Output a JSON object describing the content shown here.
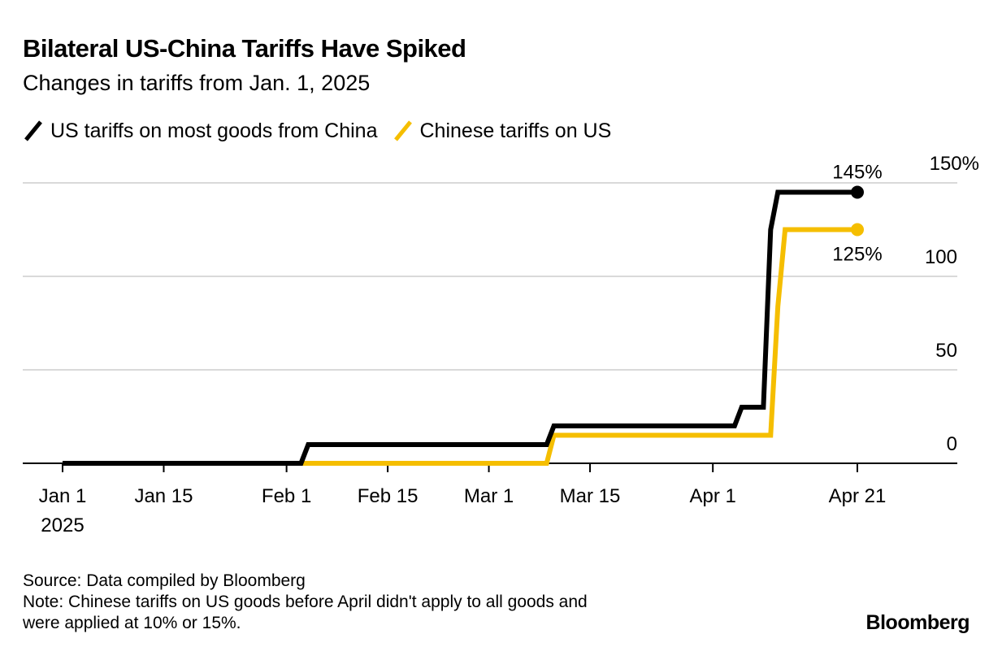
{
  "header": {
    "title": "Bilateral US-China Tariffs Have Spiked",
    "subtitle": "Changes in tariffs from Jan. 1, 2025"
  },
  "legend": [
    {
      "label": "US tariffs on most goods from China",
      "color": "#000000"
    },
    {
      "label": "Chinese tariffs on US",
      "color": "#F5BE00"
    }
  ],
  "footer": {
    "source": "Source: Data compiled by Bloomberg",
    "note_line1": "Note: Chinese tariffs on US goods before April didn't apply to all goods and",
    "note_line2": "were applied at 10% or 15%.",
    "brand": "Bloomberg"
  },
  "chart_data": {
    "type": "line",
    "title": "Bilateral US-China Tariffs Have Spiked",
    "subtitle": "Changes in tariffs from Jan. 1, 2025",
    "xlabel": "",
    "ylabel": "",
    "x_start": "2025-01-01",
    "x_end": "2025-04-21",
    "xlim_days": [
      0,
      123
    ],
    "ylim": [
      0,
      150
    ],
    "grid": true,
    "y_axis_side": "right",
    "legend_position": "top-left",
    "x_ticks": [
      {
        "day": 0,
        "label": "Jan 1",
        "sublabel": "2025"
      },
      {
        "day": 14,
        "label": "Jan 15"
      },
      {
        "day": 31,
        "label": "Feb 1"
      },
      {
        "day": 45,
        "label": "Feb 15"
      },
      {
        "day": 59,
        "label": "Mar 1"
      },
      {
        "day": 73,
        "label": "Mar 15"
      },
      {
        "day": 90,
        "label": "Apr 1"
      },
      {
        "day": 110,
        "label": "Apr 21"
      }
    ],
    "y_ticks": [
      {
        "value": 0,
        "label": "0"
      },
      {
        "value": 50,
        "label": "50"
      },
      {
        "value": 100,
        "label": "100"
      },
      {
        "value": 150,
        "label": "150%"
      }
    ],
    "series": [
      {
        "name": "US tariffs on most goods from China",
        "color": "#000000",
        "points": [
          {
            "day": 0,
            "value": 0
          },
          {
            "day": 33,
            "value": 0
          },
          {
            "day": 34,
            "value": 10
          },
          {
            "day": 67,
            "value": 10
          },
          {
            "day": 68,
            "value": 20
          },
          {
            "day": 93,
            "value": 20
          },
          {
            "day": 94,
            "value": 30
          },
          {
            "day": 97,
            "value": 30
          },
          {
            "day": 98,
            "value": 125
          },
          {
            "day": 99,
            "value": 145
          },
          {
            "day": 110,
            "value": 145
          }
        ],
        "end_label": "145%"
      },
      {
        "name": "Chinese tariffs on US",
        "color": "#F5BE00",
        "points": [
          {
            "day": 0,
            "value": 0
          },
          {
            "day": 67,
            "value": 0
          },
          {
            "day": 68,
            "value": 15
          },
          {
            "day": 98,
            "value": 15
          },
          {
            "day": 99,
            "value": 84
          },
          {
            "day": 100,
            "value": 125
          },
          {
            "day": 110,
            "value": 125
          }
        ],
        "end_label": "125%"
      }
    ]
  }
}
